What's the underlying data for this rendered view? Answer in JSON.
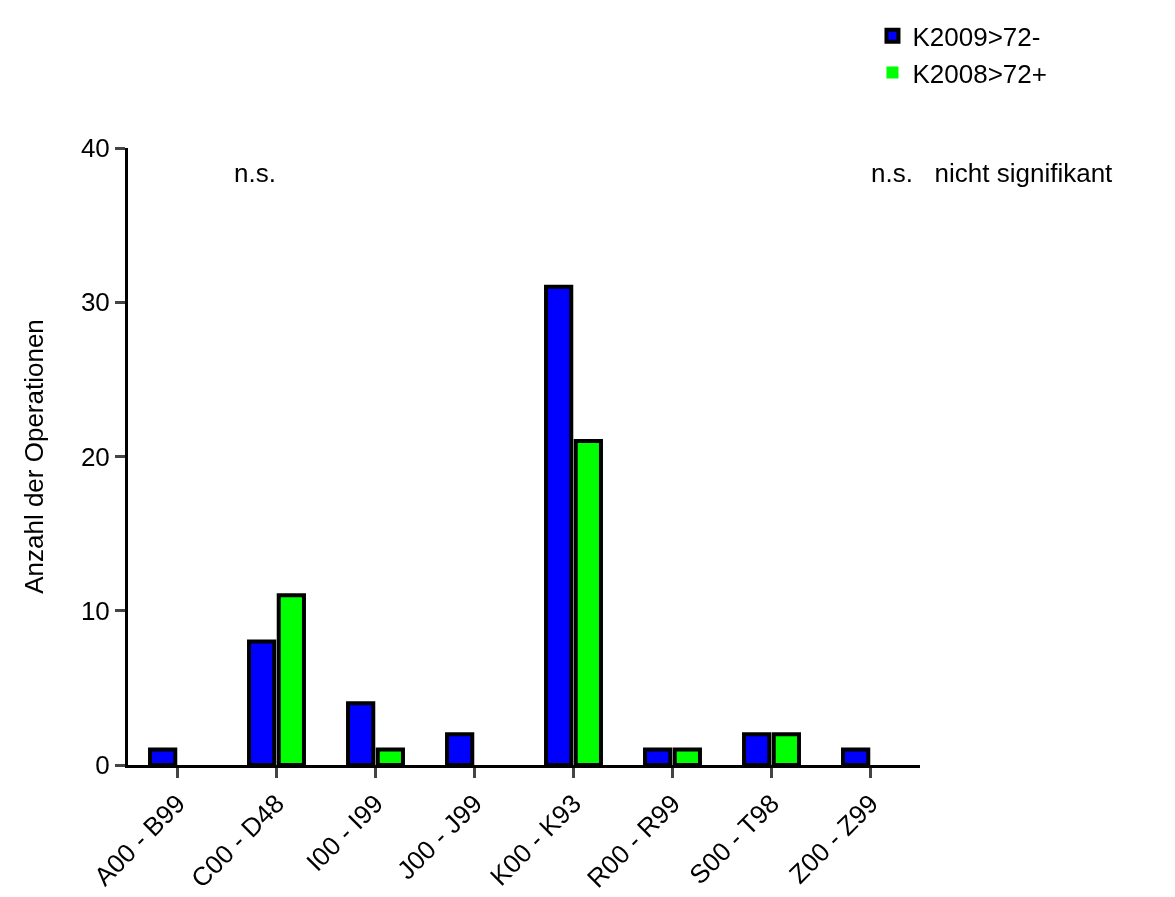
{
  "chart_data": {
    "type": "bar",
    "ylabel": "Anzahl der Operationen",
    "categories": [
      "A00 - B99",
      "C00 - D48",
      "I00 - I99",
      "J00 - J99",
      "K00 - K93",
      "R00 - R99",
      "S00 - T98",
      "Z00 - Z99"
    ],
    "series": [
      {
        "name": "K2009>72-",
        "color": "#0000ff",
        "values": [
          1,
          8,
          4,
          2,
          31,
          1,
          2,
          1
        ]
      },
      {
        "name": "K2008>72+",
        "color": "#00ff00",
        "values": [
          0,
          11,
          1,
          0,
          21,
          1,
          2,
          0
        ]
      }
    ],
    "ylim": [
      0,
      40
    ],
    "yticks": [
      0,
      10,
      20,
      30,
      40
    ],
    "grid": false,
    "legend": "top right",
    "annotations": [
      "n.s.",
      "n.s.   nicht signifikant"
    ]
  }
}
